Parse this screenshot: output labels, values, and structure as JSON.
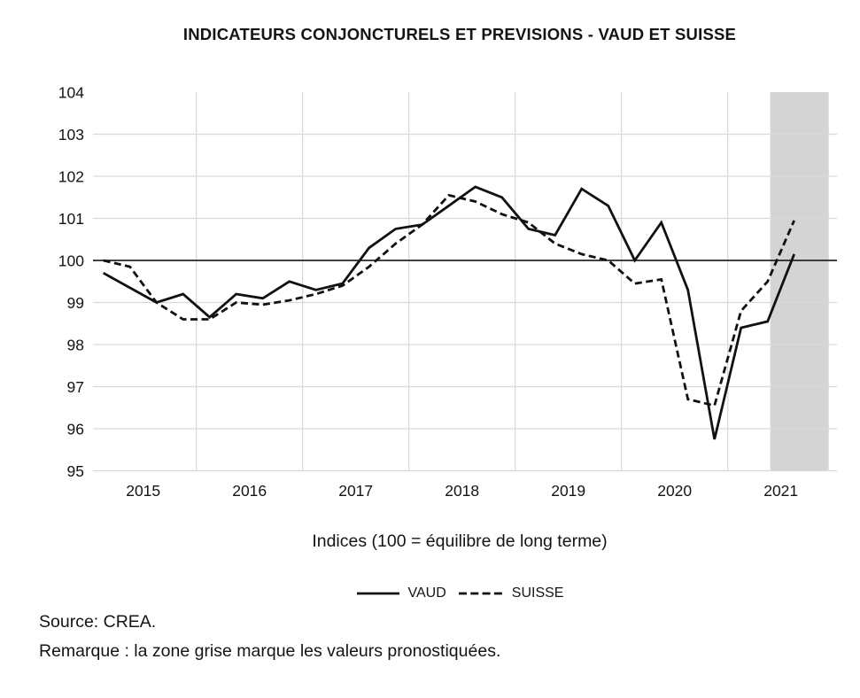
{
  "title": "INDICATEURS CONJONCTURELS ET PREVISIONS - VAUD ET SUISSE",
  "chart_data": {
    "type": "line",
    "title": "INDICATEURS CONJONCTURELS ET PREVISIONS - VAUD ET SUISSE",
    "subtitle": "Indices (100 = équilibre de long terme)",
    "categories": [
      "2015T1",
      "2015T2",
      "2015T3",
      "2015T4",
      "2016T1",
      "2016T2",
      "2016T3",
      "2016T4",
      "2017T1",
      "2017T2",
      "2017T3",
      "2017T4",
      "2018T1",
      "2018T2",
      "2018T3",
      "2018T4",
      "2019T1",
      "2019T2",
      "2019T3",
      "2019T4",
      "2020T1",
      "2020T2",
      "2020T3",
      "2020T4",
      "2021T1",
      "2021T2",
      "2021T3"
    ],
    "series": [
      {
        "name": "VAUD",
        "line_style": "solid",
        "values": [
          99.7,
          99.35,
          99.0,
          99.2,
          98.65,
          99.2,
          99.1,
          99.5,
          99.3,
          99.45,
          100.3,
          100.75,
          100.85,
          101.3,
          101.75,
          101.5,
          100.75,
          100.6,
          101.7,
          101.3,
          100.0,
          100.9,
          99.3,
          95.75,
          98.4,
          98.55,
          100.15
        ]
      },
      {
        "name": "SUISSE",
        "line_style": "dashed",
        "values": [
          100.0,
          99.85,
          99.0,
          98.6,
          98.6,
          99.0,
          98.95,
          99.05,
          99.2,
          99.4,
          99.85,
          100.4,
          100.85,
          101.55,
          101.4,
          101.1,
          100.9,
          100.4,
          100.15,
          100.0,
          99.45,
          99.55,
          96.7,
          96.55,
          98.8,
          99.5,
          100.95
        ]
      }
    ],
    "ylim": [
      95,
      104
    ],
    "y_ticks": [
      95,
      96,
      97,
      98,
      99,
      100,
      101,
      102,
      103,
      104
    ],
    "x_ticks": [
      2015,
      2016,
      2017,
      2018,
      2019,
      2020,
      2021
    ],
    "x_gridline_years": [
      2016,
      2017,
      2018,
      2019,
      2020,
      2021
    ],
    "baseline_value": 100,
    "grid": true,
    "legend_position": "bottom",
    "forecast_zone": {
      "from_year": 2021.4,
      "to_year": 2021.95,
      "meaning": "valeurs pronostiquées"
    }
  },
  "legend": {
    "items": [
      {
        "label": "VAUD",
        "line_style": "solid"
      },
      {
        "label": "SUISSE",
        "line_style": "dashed"
      }
    ]
  },
  "footer": {
    "source": "Source: CREA.",
    "remark": "Remarque : la zone grise marque les valeurs pronostiquées."
  },
  "colors": {
    "line": "#111111",
    "gridline": "#d9d9d9",
    "baseline": "#262626",
    "forecast_zone_fill": "#d4d4d4",
    "text": "#141414",
    "background": "#ffffff"
  }
}
